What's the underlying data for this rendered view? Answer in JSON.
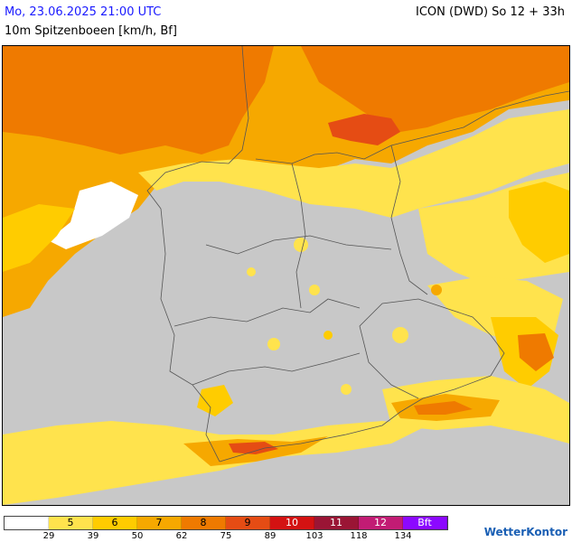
{
  "header": {
    "timestamp": "Mo, 23.06.2025 21:00 UTC",
    "parameter": "10m Spitzenboeen [km/h, Bf]",
    "model": "ICON (DWD) So 12 + 33h"
  },
  "legend": {
    "bins": [
      {
        "label": "",
        "color": "#ffffff"
      },
      {
        "label": "5",
        "color": "#ffe34d"
      },
      {
        "label": "6",
        "color": "#ffcc00"
      },
      {
        "label": "7",
        "color": "#f6a800"
      },
      {
        "label": "8",
        "color": "#ef7a00"
      },
      {
        "label": "9",
        "color": "#e54c14"
      },
      {
        "label": "10",
        "color": "#d41212"
      },
      {
        "label": "11",
        "color": "#9a1535"
      },
      {
        "label": "12",
        "color": "#c21c74"
      },
      {
        "label": "Bft",
        "color": "#8c08ff"
      }
    ],
    "ticks": [
      "29",
      "39",
      "50",
      "62",
      "75",
      "89",
      "103",
      "118",
      "134"
    ]
  },
  "logo": "WetterKontor",
  "colors": {
    "land_base": "#c8c8c8",
    "border_line": "#555555"
  }
}
